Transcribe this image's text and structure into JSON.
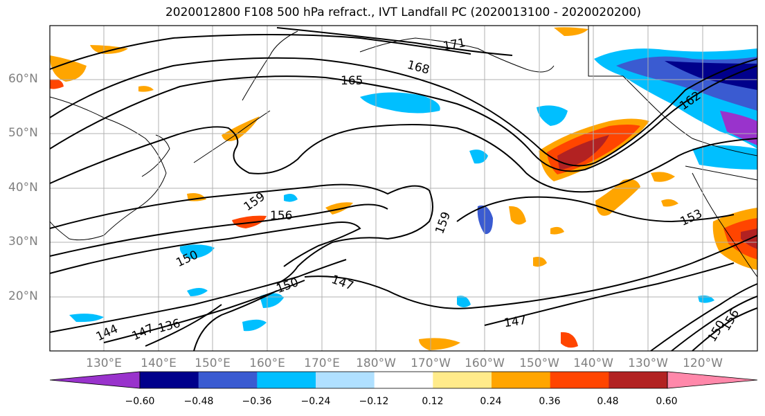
{
  "title": "2020012800 F108 500 hPa refract., IVT Landfall PC (2020013100 - 2020020200)",
  "lat_labels": [
    "60°N",
    "50°N",
    "40°N",
    "30°N",
    "20°N"
  ],
  "lon_labels": [
    "130°E",
    "140°E",
    "150°E",
    "160°E",
    "170°E",
    "180°W",
    "170°W",
    "160°W",
    "150°W",
    "140°W",
    "130°W",
    "120°W"
  ],
  "contour_labels": [
    "165",
    "168",
    "171",
    "162",
    "159",
    "156",
    "159",
    "150",
    "150",
    "147",
    "147",
    "144",
    "147",
    "136",
    "153",
    "150",
    "156"
  ],
  "colorbar": {
    "colors": [
      "#9933cc",
      "#00008b",
      "#3a5bd1",
      "#00bfff",
      "#b0e0ff",
      "#ffffff",
      "#ffeb8a",
      "#ffa500",
      "#ff4500",
      "#b22222",
      "#ff88aa"
    ],
    "tick_labels": [
      "−0.60",
      "−0.48",
      "−0.36",
      "−0.24",
      "−0.12",
      "0.12",
      "0.24",
      "0.36",
      "0.48",
      "0.60"
    ]
  }
}
